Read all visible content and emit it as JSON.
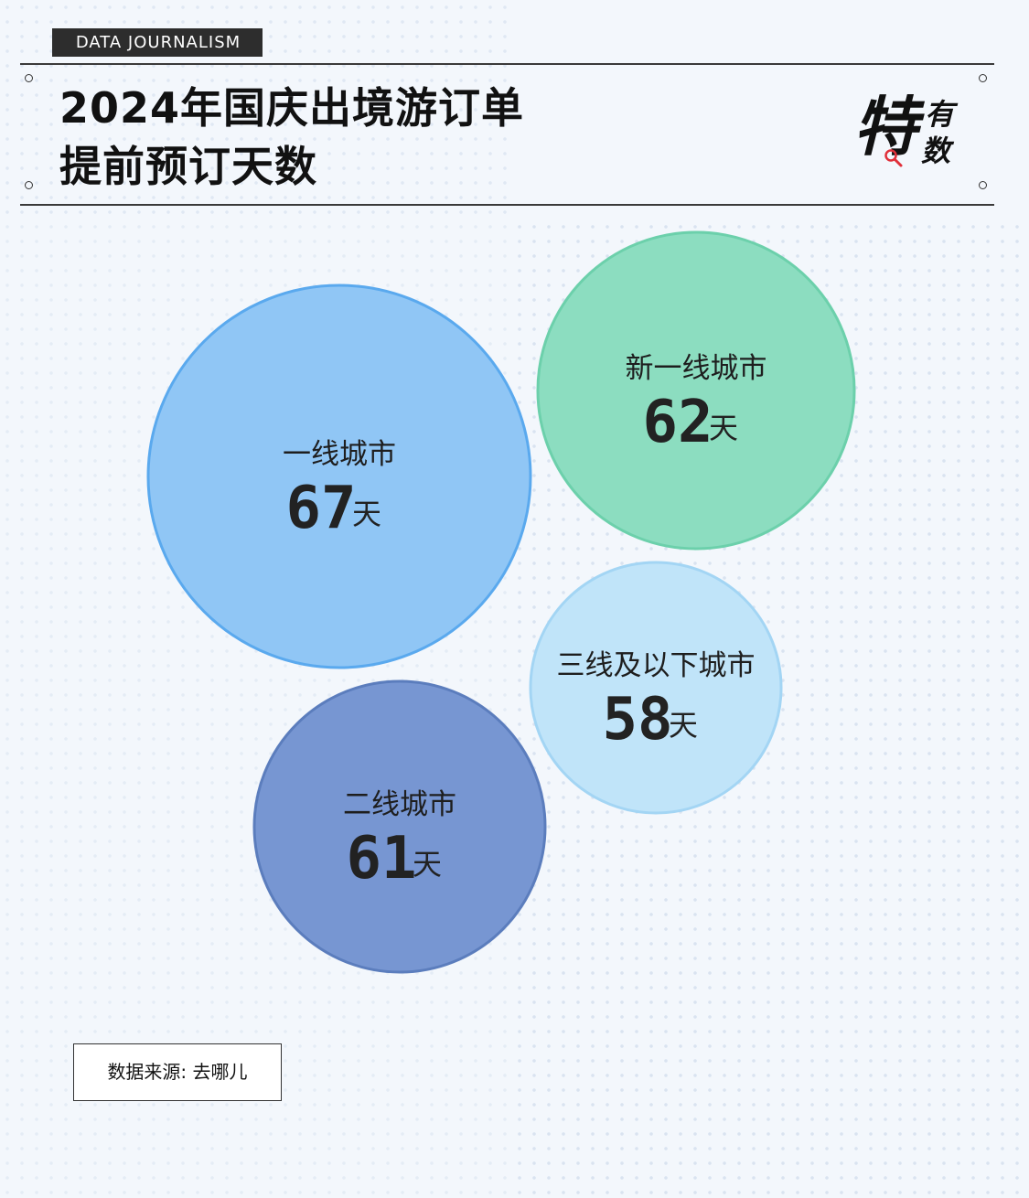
{
  "tag": "DATA JOURNALISM",
  "title_line1": "2024年国庆出境游订单",
  "title_line2": "提前预订天数",
  "logo": {
    "big": "特",
    "small_top": "有",
    "small_bottom": "数"
  },
  "source": "数据来源: 去哪儿",
  "colors": {
    "first_tier": "#90c6f5",
    "new_first_tier": "#8cddc0",
    "third_tier": "#c0e4f9",
    "second_tier": "#7796d2"
  },
  "chart_data": {
    "type": "bubble",
    "unit": "天",
    "series": [
      {
        "label": "一线城市",
        "value": 67
      },
      {
        "label": "新一线城市",
        "value": 62
      },
      {
        "label": "三线及以下城市",
        "value": 58
      },
      {
        "label": "二线城市",
        "value": 61
      }
    ]
  }
}
